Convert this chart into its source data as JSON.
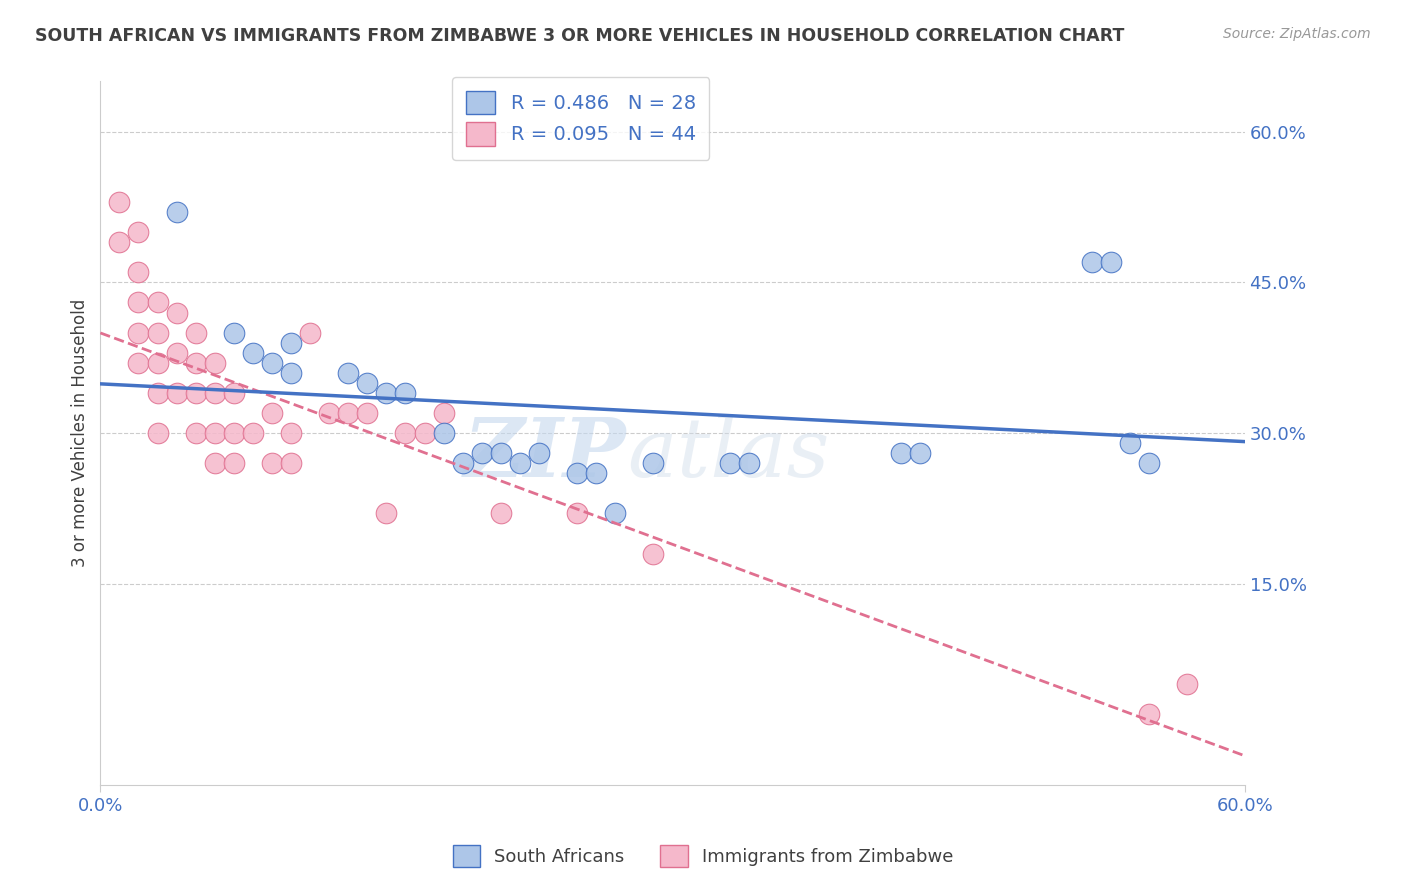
{
  "title": "SOUTH AFRICAN VS IMMIGRANTS FROM ZIMBABWE 3 OR MORE VEHICLES IN HOUSEHOLD CORRELATION CHART",
  "source": "Source: ZipAtlas.com",
  "ylabel": "3 or more Vehicles in Household",
  "xlim": [
    0,
    0.6
  ],
  "ylim": [
    -0.05,
    0.65
  ],
  "yticks": [
    0.15,
    0.3,
    0.45,
    0.6
  ],
  "ytick_labels": [
    "15.0%",
    "30.0%",
    "45.0%",
    "60.0%"
  ],
  "R_sa": 0.486,
  "N_sa": 28,
  "R_zim": 0.095,
  "N_zim": 44,
  "legend_label_sa": "South Africans",
  "legend_label_zim": "Immigrants from Zimbabwe",
  "color_sa": "#adc6e8",
  "color_zim": "#f5b8cb",
  "line_color_sa": "#4472c4",
  "line_color_zim": "#e07090",
  "watermark_zip": "ZIP",
  "watermark_atlas": "atlas",
  "title_color": "#404040",
  "source_color": "#999999",
  "background_color": "#ffffff",
  "sa_x": [
    0.04,
    0.07,
    0.08,
    0.09,
    0.1,
    0.1,
    0.13,
    0.14,
    0.15,
    0.16,
    0.18,
    0.19,
    0.2,
    0.21,
    0.22,
    0.23,
    0.25,
    0.26,
    0.27,
    0.29,
    0.33,
    0.34,
    0.42,
    0.43,
    0.52,
    0.53,
    0.54,
    0.55
  ],
  "sa_y": [
    0.52,
    0.4,
    0.38,
    0.37,
    0.39,
    0.36,
    0.36,
    0.35,
    0.34,
    0.34,
    0.3,
    0.27,
    0.28,
    0.28,
    0.27,
    0.28,
    0.26,
    0.26,
    0.22,
    0.27,
    0.27,
    0.27,
    0.28,
    0.28,
    0.47,
    0.47,
    0.29,
    0.27
  ],
  "zim_x": [
    0.01,
    0.01,
    0.02,
    0.02,
    0.02,
    0.02,
    0.02,
    0.03,
    0.03,
    0.03,
    0.03,
    0.03,
    0.04,
    0.04,
    0.04,
    0.05,
    0.05,
    0.05,
    0.05,
    0.06,
    0.06,
    0.06,
    0.06,
    0.07,
    0.07,
    0.07,
    0.08,
    0.09,
    0.09,
    0.1,
    0.1,
    0.11,
    0.12,
    0.13,
    0.14,
    0.15,
    0.16,
    0.17,
    0.18,
    0.21,
    0.25,
    0.29,
    0.55,
    0.57
  ],
  "zim_y": [
    0.53,
    0.49,
    0.5,
    0.46,
    0.43,
    0.4,
    0.37,
    0.43,
    0.4,
    0.37,
    0.34,
    0.3,
    0.42,
    0.38,
    0.34,
    0.4,
    0.37,
    0.34,
    0.3,
    0.37,
    0.34,
    0.3,
    0.27,
    0.34,
    0.3,
    0.27,
    0.3,
    0.32,
    0.27,
    0.3,
    0.27,
    0.4,
    0.32,
    0.32,
    0.32,
    0.22,
    0.3,
    0.3,
    0.32,
    0.22,
    0.22,
    0.18,
    0.02,
    0.05
  ]
}
